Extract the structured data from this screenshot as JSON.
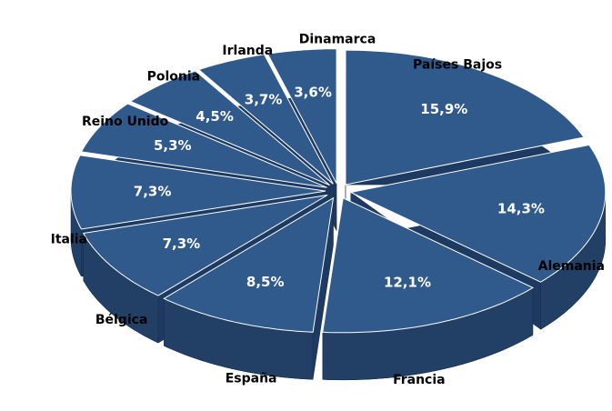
{
  "chart_data": {
    "type": "pie",
    "categories": [
      "Países Bajos",
      "Alemania",
      "Francia",
      "España",
      "Bélgica",
      "Italia",
      "Reino Unido",
      "Polonia",
      "Irlanda",
      "Dinamarca"
    ],
    "values": [
      15.9,
      14.3,
      12.1,
      8.5,
      7.3,
      7.3,
      5.3,
      4.5,
      3.7,
      3.6
    ],
    "value_labels": [
      "15,9%",
      "14,3%",
      "12,1%",
      "8,5%",
      "7,3%",
      "7,3%",
      "5,3%",
      "4,5%",
      "3,7%",
      "3,6%"
    ],
    "color": "#30598c"
  }
}
